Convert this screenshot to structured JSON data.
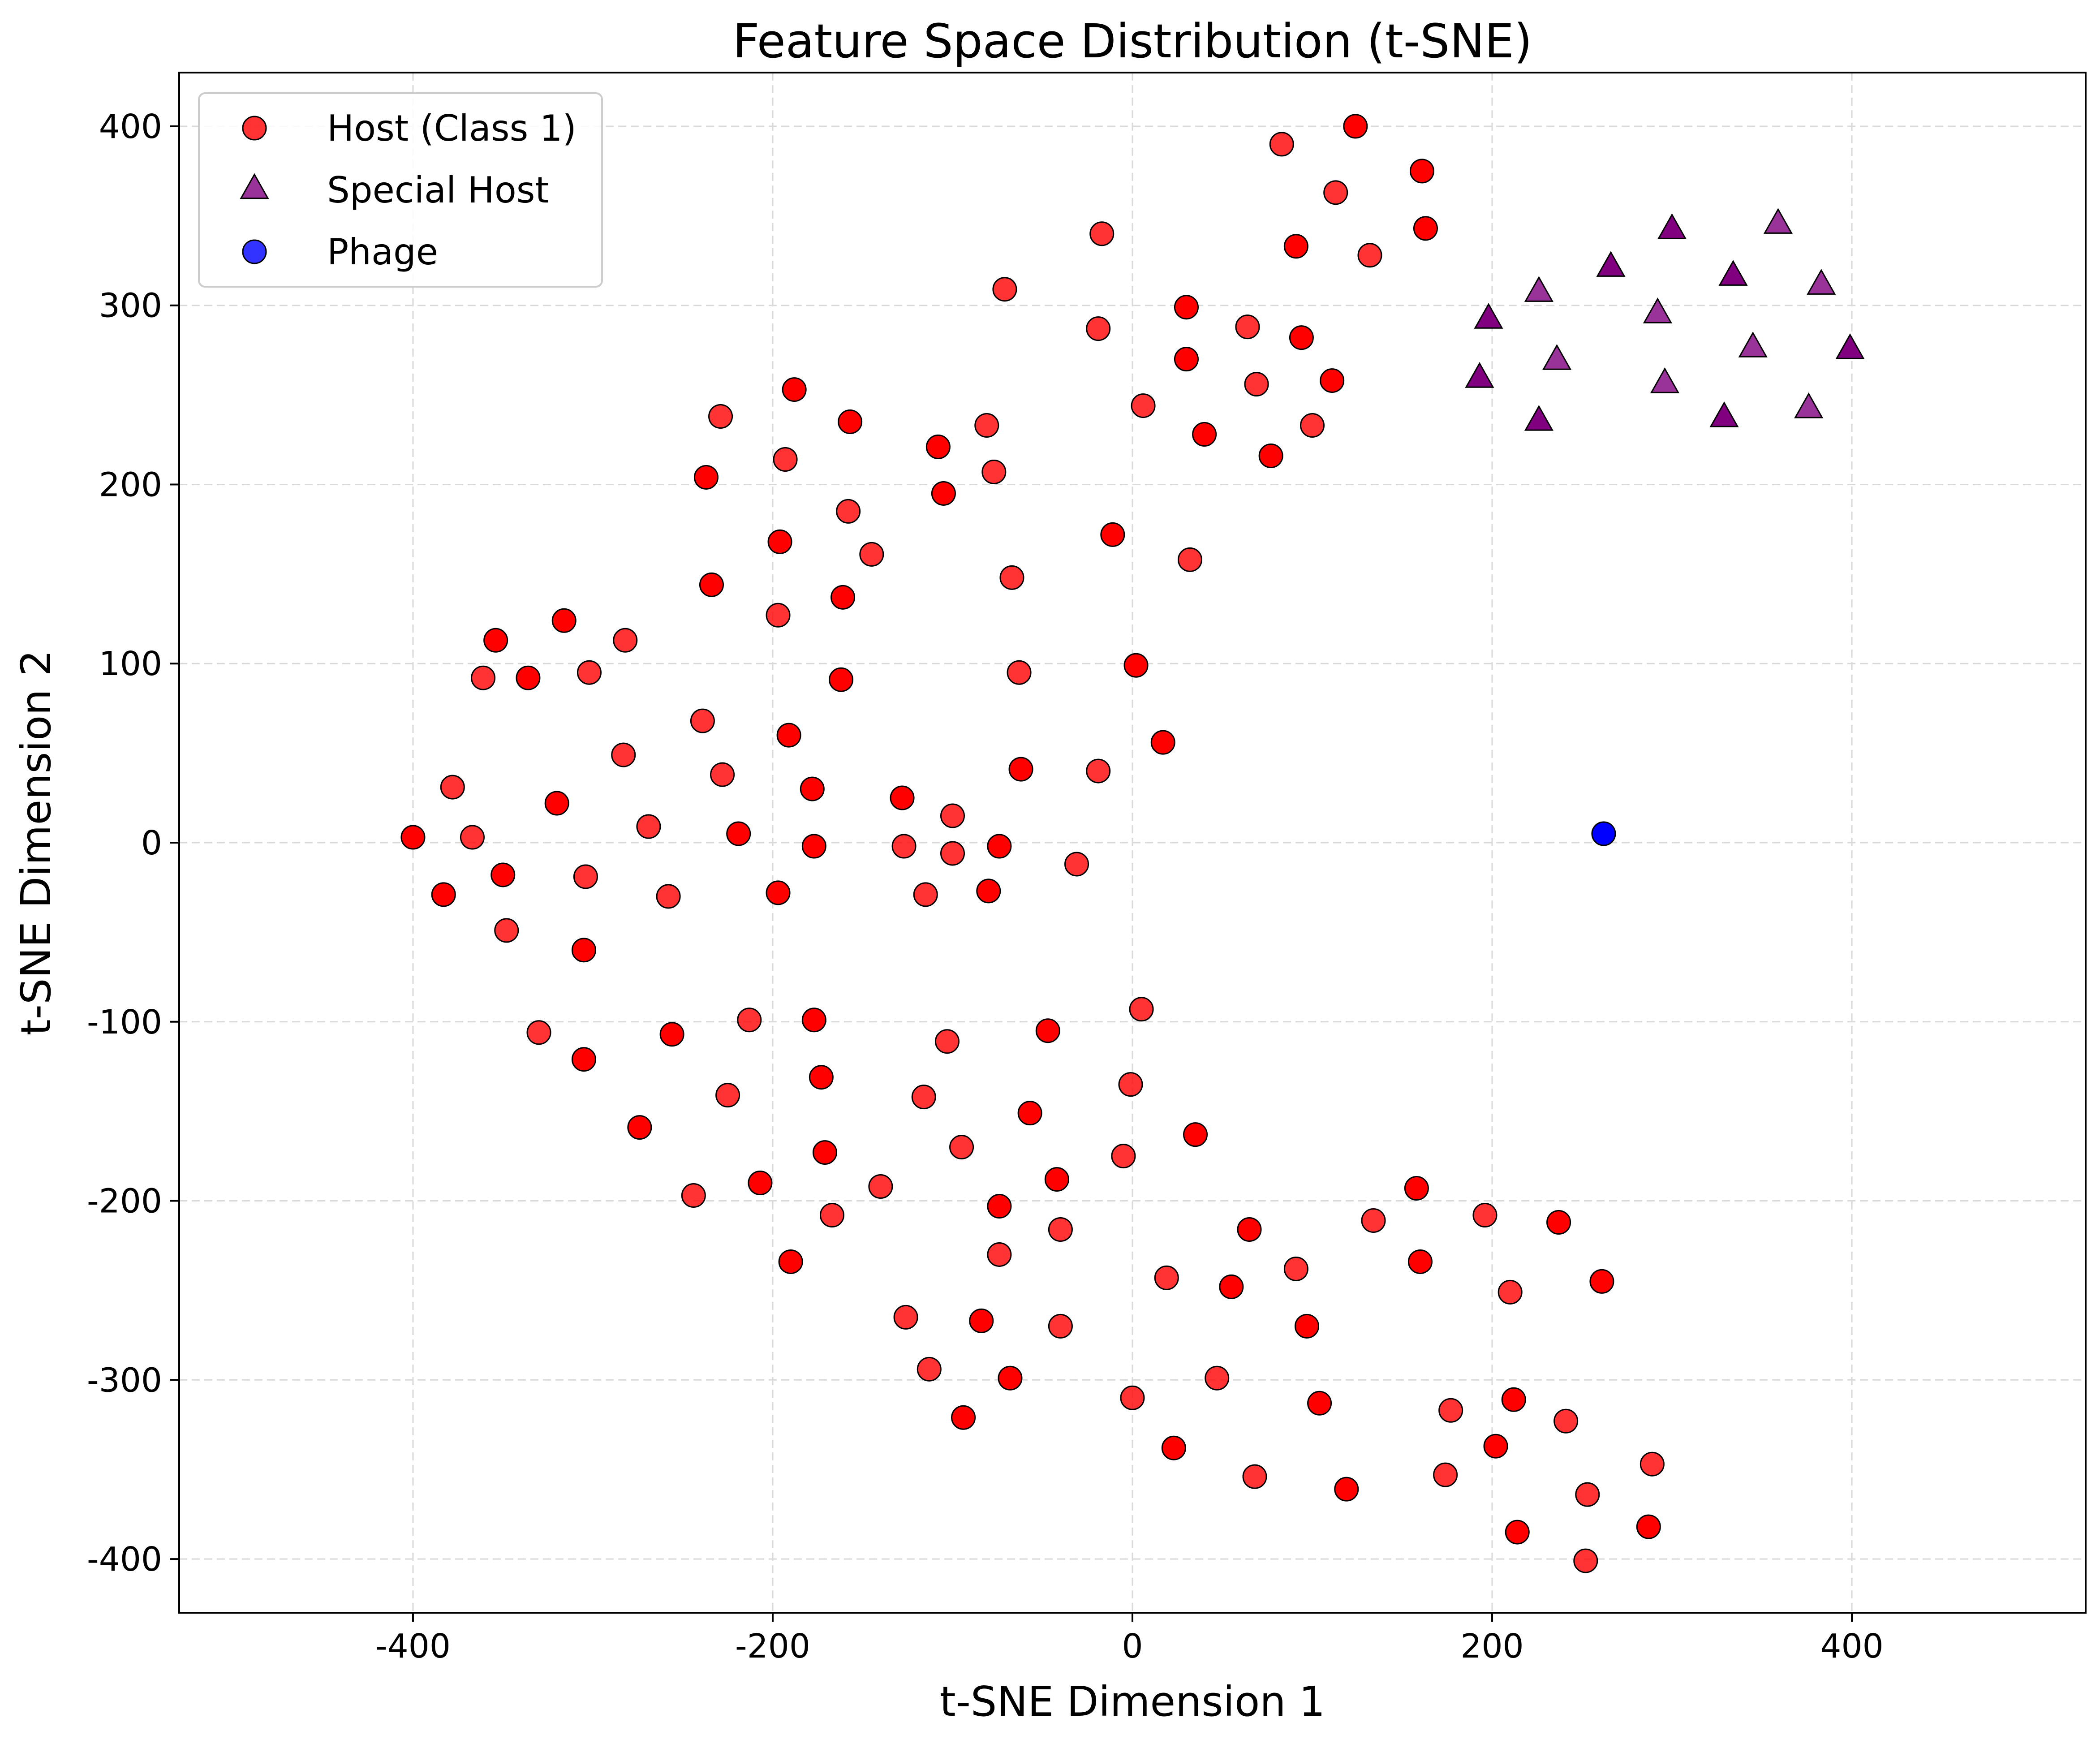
{
  "chart_data": {
    "type": "scatter",
    "title": "Feature Space Distribution (t-SNE)",
    "xlabel": "t-SNE Dimension 1",
    "ylabel": "t-SNE Dimension 2",
    "xlim": [
      -530,
      530
    ],
    "ylim": [
      -430,
      430
    ],
    "xticks": [
      -400,
      -200,
      0,
      200,
      400
    ],
    "yticks": [
      -400,
      -300,
      -200,
      -100,
      0,
      100,
      200,
      300,
      400
    ],
    "grid": true,
    "legend_position": "top-left",
    "series": [
      {
        "name": "Host (Class 1)",
        "marker": "circle",
        "color": "#ff0000",
        "points": [
          [
            124,
            400
          ],
          [
            83,
            390
          ],
          [
            161,
            375
          ],
          [
            113,
            363
          ],
          [
            91,
            333
          ],
          [
            132,
            328
          ],
          [
            163,
            343
          ],
          [
            -17,
            340
          ],
          [
            30,
            299
          ],
          [
            64,
            288
          ],
          [
            94,
            282
          ],
          [
            -19,
            287
          ],
          [
            30,
            270
          ],
          [
            69,
            256
          ],
          [
            111,
            258
          ],
          [
            6,
            244
          ],
          [
            40,
            228
          ],
          [
            100,
            233
          ],
          [
            77,
            216
          ],
          [
            -71,
            309
          ],
          [
            -188,
            253
          ],
          [
            -229,
            238
          ],
          [
            -157,
            235
          ],
          [
            -81,
            233
          ],
          [
            -108,
            221
          ],
          [
            -193,
            214
          ],
          [
            -237,
            204
          ],
          [
            -77,
            207
          ],
          [
            -105,
            195
          ],
          [
            -158,
            185
          ],
          [
            -196,
            168
          ],
          [
            -145,
            161
          ],
          [
            -234,
            144
          ],
          [
            -67,
            148
          ],
          [
            -161,
            137
          ],
          [
            -197,
            127
          ],
          [
            -11,
            172
          ],
          [
            32,
            158
          ],
          [
            -316,
            124
          ],
          [
            -282,
            113
          ],
          [
            -354,
            113
          ],
          [
            -361,
            92
          ],
          [
            -336,
            92
          ],
          [
            -302,
            95
          ],
          [
            -162,
            91
          ],
          [
            -63,
            95
          ],
          [
            2,
            99
          ],
          [
            -239,
            68
          ],
          [
            -191,
            60
          ],
          [
            -283,
            49
          ],
          [
            17,
            56
          ],
          [
            -228,
            38
          ],
          [
            -62,
            41
          ],
          [
            -19,
            40
          ],
          [
            -178,
            30
          ],
          [
            -378,
            31
          ],
          [
            -320,
            22
          ],
          [
            -269,
            9
          ],
          [
            -128,
            25
          ],
          [
            -100,
            15
          ],
          [
            -400,
            3
          ],
          [
            -367,
            3
          ],
          [
            -219,
            5
          ],
          [
            -127,
            -2
          ],
          [
            -177,
            -2
          ],
          [
            -100,
            -6
          ],
          [
            -74,
            -2
          ],
          [
            -31,
            -12
          ],
          [
            -350,
            -18
          ],
          [
            -304,
            -19
          ],
          [
            -383,
            -29
          ],
          [
            -258,
            -30
          ],
          [
            -197,
            -28
          ],
          [
            -115,
            -29
          ],
          [
            -80,
            -27
          ],
          [
            -348,
            -49
          ],
          [
            -305,
            -60
          ],
          [
            -330,
            -106
          ],
          [
            -256,
            -107
          ],
          [
            -213,
            -99
          ],
          [
            -177,
            -99
          ],
          [
            -103,
            -111
          ],
          [
            -47,
            -105
          ],
          [
            5,
            -93
          ],
          [
            -305,
            -121
          ],
          [
            -225,
            -141
          ],
          [
            -173,
            -131
          ],
          [
            -116,
            -142
          ],
          [
            -57,
            -151
          ],
          [
            -1,
            -135
          ],
          [
            -274,
            -159
          ],
          [
            -95,
            -170
          ],
          [
            -171,
            -173
          ],
          [
            -5,
            -175
          ],
          [
            35,
            -163
          ],
          [
            -244,
            -197
          ],
          [
            -207,
            -190
          ],
          [
            -140,
            -192
          ],
          [
            -42,
            -188
          ],
          [
            -167,
            -208
          ],
          [
            -74,
            -203
          ],
          [
            -40,
            -216
          ],
          [
            -190,
            -234
          ],
          [
            -74,
            -230
          ],
          [
            65,
            -216
          ],
          [
            134,
            -211
          ],
          [
            158,
            -193
          ],
          [
            196,
            -208
          ],
          [
            237,
            -212
          ],
          [
            19,
            -243
          ],
          [
            55,
            -248
          ],
          [
            91,
            -238
          ],
          [
            160,
            -234
          ],
          [
            210,
            -251
          ],
          [
            261,
            -245
          ],
          [
            -126,
            -265
          ],
          [
            -84,
            -267
          ],
          [
            -40,
            -270
          ],
          [
            97,
            -270
          ],
          [
            -113,
            -294
          ],
          [
            -68,
            -299
          ],
          [
            47,
            -299
          ],
          [
            -94,
            -321
          ],
          [
            0,
            -310
          ],
          [
            104,
            -313
          ],
          [
            177,
            -317
          ],
          [
            212,
            -311
          ],
          [
            241,
            -323
          ],
          [
            23,
            -338
          ],
          [
            68,
            -354
          ],
          [
            119,
            -361
          ],
          [
            174,
            -353
          ],
          [
            202,
            -337
          ],
          [
            253,
            -364
          ],
          [
            214,
            -385
          ],
          [
            252,
            -401
          ],
          [
            287,
            -382
          ],
          [
            289,
            -347
          ]
        ]
      },
      {
        "name": "Special Host",
        "marker": "triangle",
        "color": "#800080",
        "points": [
          [
            300,
            342
          ],
          [
            359,
            345
          ],
          [
            266,
            321
          ],
          [
            226,
            307
          ],
          [
            334,
            316
          ],
          [
            383,
            311
          ],
          [
            198,
            292
          ],
          [
            292,
            295
          ],
          [
            193,
            259
          ],
          [
            236,
            269
          ],
          [
            226,
            235
          ],
          [
            345,
            276
          ],
          [
            399,
            275
          ],
          [
            296,
            256
          ],
          [
            329,
            237
          ],
          [
            376,
            242
          ]
        ]
      },
      {
        "name": "Phage",
        "marker": "circle",
        "color": "#0000ff",
        "points": [
          [
            262,
            5
          ]
        ]
      }
    ]
  }
}
